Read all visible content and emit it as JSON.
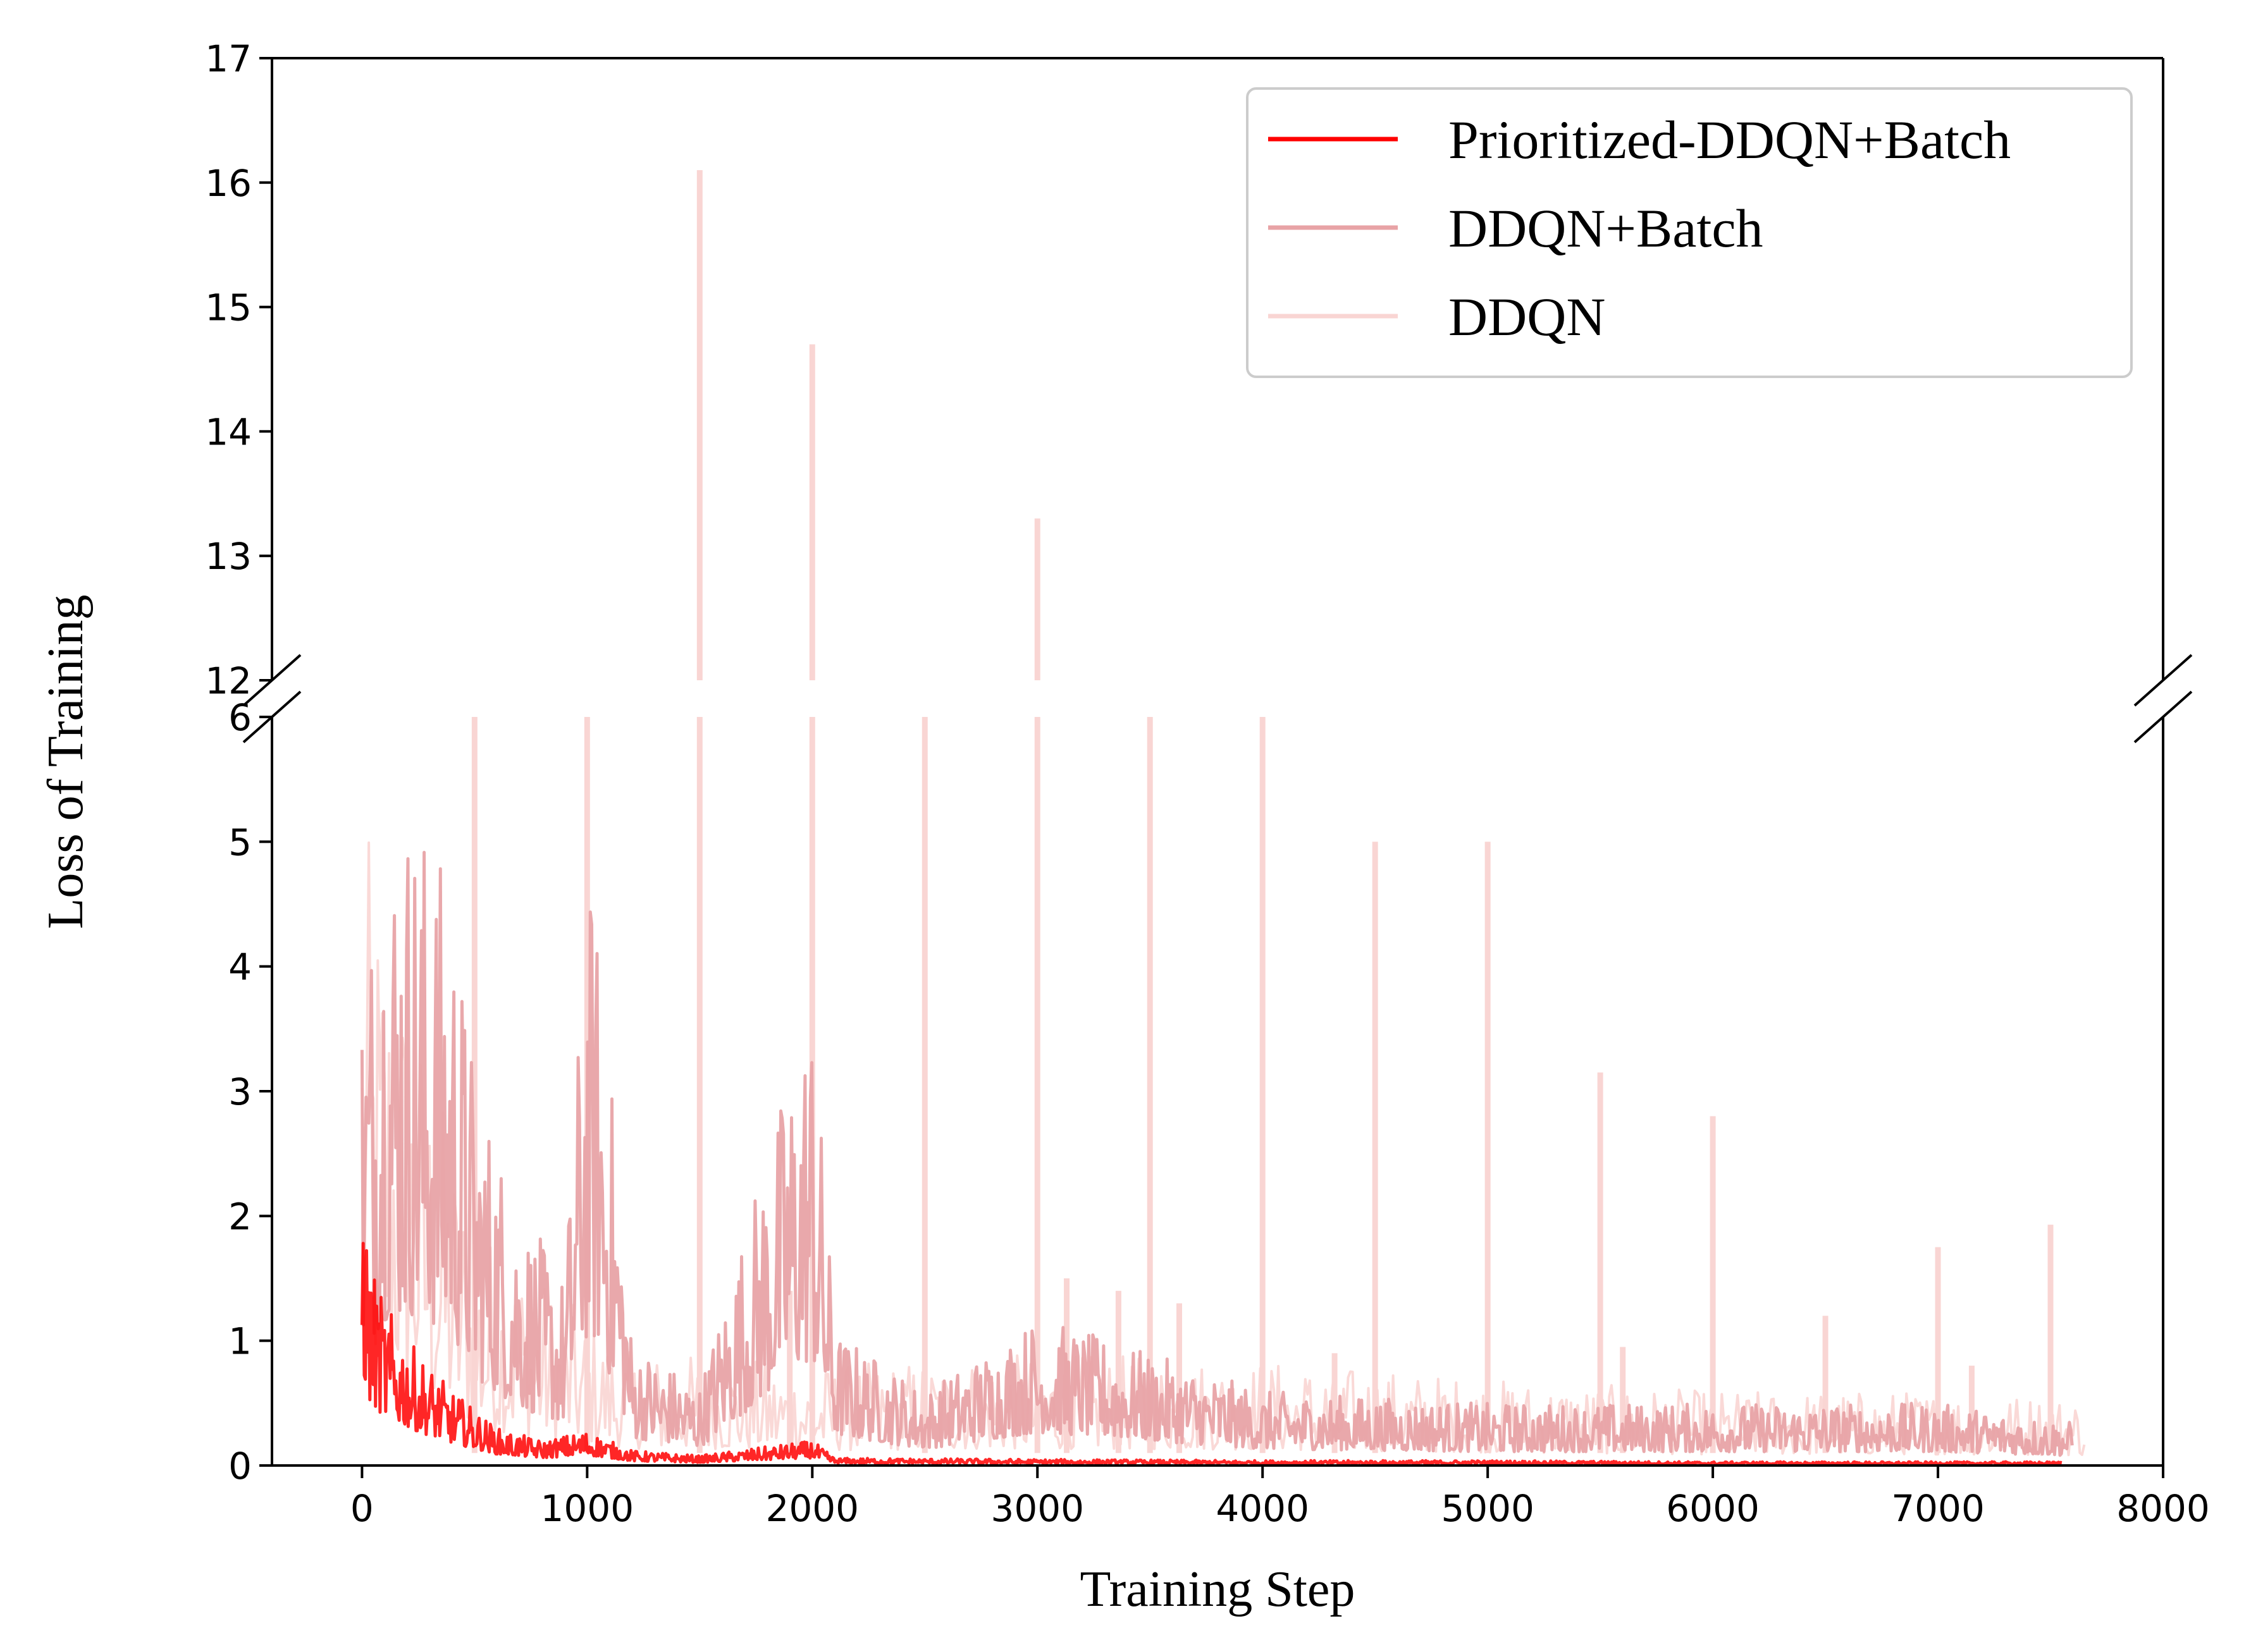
{
  "chart_data": {
    "type": "line",
    "xlabel": "Training Step",
    "ylabel": "Loss of Training",
    "xlim": [
      -400,
      8000
    ],
    "xticks": [
      0,
      1000,
      2000,
      3000,
      4000,
      5000,
      6000,
      7000,
      8000
    ],
    "broken_y_axis": true,
    "upper_ylim": [
      12,
      17
    ],
    "upper_yticks": [
      12,
      13,
      14,
      15,
      16,
      17
    ],
    "lower_ylim": [
      0,
      6
    ],
    "lower_yticks": [
      0,
      1,
      2,
      3,
      4,
      5,
      6
    ],
    "legend_position": "top-right",
    "grid": false,
    "series": [
      {
        "name": "Prioritized-DDQN+Batch",
        "color": "#ff0000",
        "x_range": [
          0,
          7550
        ],
        "envelope": [
          [
            0,
            2.6
          ],
          [
            30,
            1.7
          ],
          [
            100,
            1.3
          ],
          [
            250,
            0.9
          ],
          [
            400,
            0.6
          ],
          [
            600,
            0.3
          ],
          [
            800,
            0.2
          ],
          [
            1000,
            0.28
          ],
          [
            1200,
            0.12
          ],
          [
            1500,
            0.08
          ],
          [
            2000,
            0.2
          ],
          [
            2100,
            0.06
          ],
          [
            3000,
            0.05
          ],
          [
            4000,
            0.04
          ],
          [
            5000,
            0.04
          ],
          [
            6000,
            0.03
          ],
          [
            7550,
            0.03
          ]
        ]
      },
      {
        "name": "DDQN+Batch",
        "color": "#e8a3a6",
        "x_range": [
          0,
          7600
        ],
        "envelope": [
          [
            0,
            4.1
          ],
          [
            100,
            5.3
          ],
          [
            220,
            5.45
          ],
          [
            400,
            4.7
          ],
          [
            500,
            3.2
          ],
          [
            700,
            2.1
          ],
          [
            900,
            1.5
          ],
          [
            1000,
            4.7
          ],
          [
            1050,
            4.4
          ],
          [
            1200,
            1.0
          ],
          [
            1500,
            0.65
          ],
          [
            2000,
            3.85
          ],
          [
            2100,
            1.1
          ],
          [
            2500,
            0.6
          ],
          [
            3000,
            1.2
          ],
          [
            4000,
            0.6
          ],
          [
            5000,
            0.5
          ],
          [
            6000,
            0.5
          ],
          [
            7000,
            0.5
          ],
          [
            7600,
            0.35
          ]
        ]
      },
      {
        "name": "DDQN",
        "color": "#f9d5d3",
        "x_range": [
          0,
          7650
        ],
        "spikes": [
          [
            500,
            6.2
          ],
          [
            1000,
            6.5
          ],
          [
            1500,
            16.1
          ],
          [
            2000,
            14.7
          ],
          [
            2500,
            6.3
          ],
          [
            3000,
            13.3
          ],
          [
            3500,
            6.2
          ],
          [
            4000,
            6.1
          ],
          [
            4500,
            5.0
          ],
          [
            5000,
            5.0
          ],
          [
            5500,
            3.15
          ],
          [
            6000,
            2.8
          ],
          [
            6500,
            1.2
          ],
          [
            7000,
            1.75
          ],
          [
            7500,
            1.93
          ],
          [
            1900,
            1.4
          ],
          [
            3130,
            1.5
          ],
          [
            3360,
            1.4
          ],
          [
            3630,
            1.3
          ],
          [
            4320,
            0.9
          ],
          [
            5600,
            0.95
          ],
          [
            7150,
            0.8
          ]
        ],
        "envelope": [
          [
            0,
            5.2
          ],
          [
            200,
            4.0
          ],
          [
            500,
            2.0
          ],
          [
            1000,
            1.2
          ],
          [
            1200,
            0.9
          ],
          [
            1500,
            0.9
          ],
          [
            2000,
            0.8
          ],
          [
            3000,
            0.9
          ],
          [
            4000,
            0.85
          ],
          [
            5000,
            0.7
          ],
          [
            6000,
            0.6
          ],
          [
            7000,
            0.6
          ],
          [
            7650,
            0.55
          ]
        ]
      }
    ]
  }
}
